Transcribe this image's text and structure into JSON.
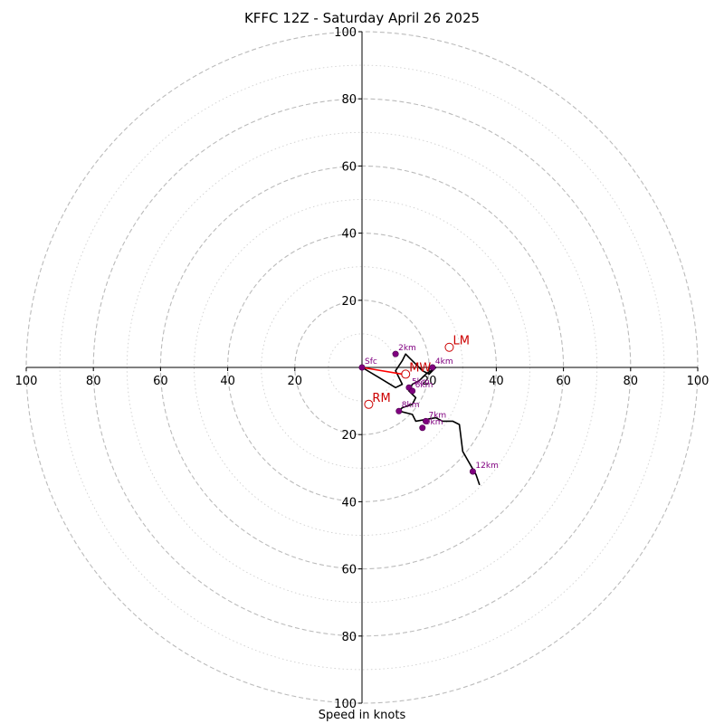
{
  "chart_data": {
    "type": "hodograph",
    "title": "KFFC 12Z - Saturday April 26 2025",
    "xlabel": "Speed in knots",
    "xlim": [
      -100,
      100
    ],
    "ylim": [
      -100,
      100
    ],
    "grid": "dashed rings every 20 kt, dotted rings every 10 kt",
    "tick_labels_x": [
      "100",
      "80",
      "60",
      "40",
      "20",
      "20",
      "40",
      "60",
      "80",
      "100"
    ],
    "tick_labels_y": [
      "100",
      "80",
      "60",
      "40",
      "20",
      "20",
      "40",
      "60",
      "80",
      "100"
    ],
    "hodograph_trace": [
      [
        0,
        0
      ],
      [
        5,
        -3
      ],
      [
        10,
        -6
      ],
      [
        12,
        -5
      ],
      [
        11,
        -3
      ],
      [
        10,
        -1
      ],
      [
        12,
        2
      ],
      [
        13,
        4
      ],
      [
        14,
        3
      ],
      [
        16,
        1
      ],
      [
        18,
        -1
      ],
      [
        20,
        -2
      ],
      [
        21,
        -1
      ],
      [
        22,
        0
      ],
      [
        19,
        -2
      ],
      [
        17,
        -4
      ],
      [
        15,
        -5
      ],
      [
        14,
        -7
      ],
      [
        16,
        -9
      ],
      [
        15,
        -11
      ],
      [
        12,
        -12
      ],
      [
        11,
        -13
      ],
      [
        15,
        -14
      ],
      [
        16,
        -16
      ],
      [
        22,
        -15
      ],
      [
        24,
        -16
      ],
      [
        27,
        -16
      ],
      [
        29,
        -17
      ],
      [
        30,
        -25
      ],
      [
        34,
        -32
      ],
      [
        35,
        -35
      ]
    ],
    "height_markers": [
      {
        "label": "Sfc",
        "x": 0,
        "y": 0
      },
      {
        "label": "2km",
        "x": 10,
        "y": 4
      },
      {
        "label": "4km",
        "x": 21,
        "y": 0
      },
      {
        "label": "5km",
        "x": 14,
        "y": -6
      },
      {
        "label": "6km",
        "x": 15,
        "y": -7
      },
      {
        "label": "8km",
        "x": 11,
        "y": -13
      },
      {
        "label": "7km",
        "x": 19,
        "y": -16
      },
      {
        "label": "9km",
        "x": 18,
        "y": -18
      },
      {
        "label": "12km",
        "x": 33,
        "y": -31
      }
    ],
    "storm_motion": [
      {
        "label": "LM",
        "x": 26,
        "y": 6
      },
      {
        "label": "RM",
        "x": 2,
        "y": -11
      },
      {
        "label": "MW",
        "x": 13,
        "y": -2
      }
    ],
    "shear_vector": {
      "from": [
        0,
        0
      ],
      "to": [
        12,
        -2
      ],
      "color": "#ff0000"
    },
    "colors": {
      "trace": "#000000",
      "markers": "#800080",
      "storm_motion": "#cc0000",
      "grid": "#bbbbbb"
    }
  }
}
